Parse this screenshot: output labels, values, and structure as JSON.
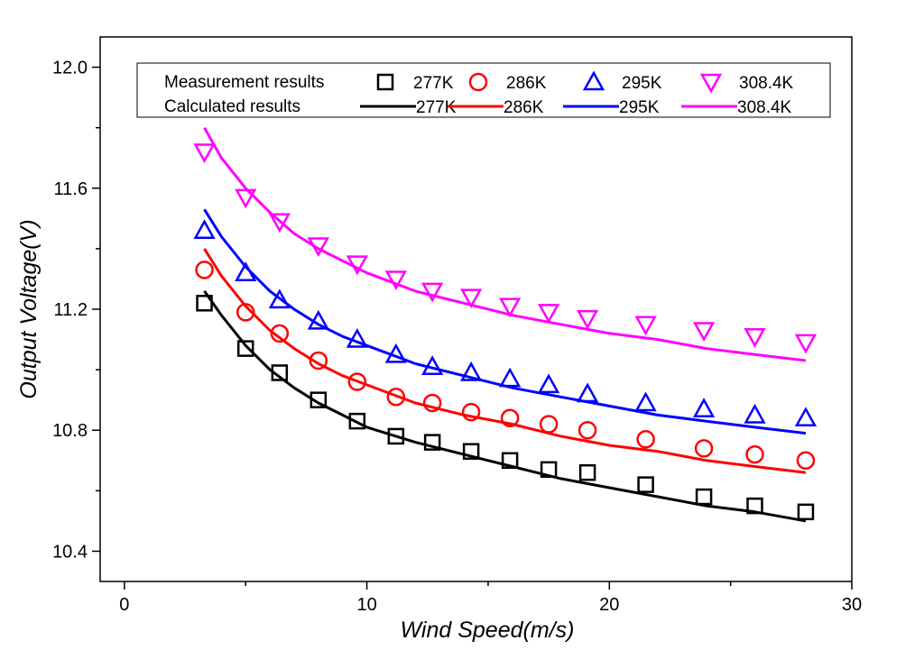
{
  "chart_data": {
    "type": "scatter",
    "title": "",
    "xlabel": "Wind Speed(m/s)",
    "ylabel": "Output Voltage(V)",
    "xlim": [
      -1,
      30
    ],
    "ylim": [
      10.3,
      12.1
    ],
    "x_ticks": [
      0,
      10,
      20,
      30
    ],
    "y_ticks": [
      10.4,
      10.8,
      11.2,
      11.6,
      12.0
    ],
    "x_tick_labels": [
      "0",
      "10",
      "20",
      "30"
    ],
    "y_tick_labels": [
      "10.4",
      "10.8",
      "11.2",
      "11.6",
      "12.0"
    ],
    "grid": false,
    "legend_position": "top",
    "legend": {
      "measured_label": "Measurement results",
      "calculated_label": "Calculated results"
    },
    "measured": [
      {
        "name": "277K",
        "color": "#000000",
        "marker": "square",
        "x": [
          3.3,
          5.0,
          6.4,
          8.0,
          9.6,
          11.2,
          12.7,
          14.3,
          15.9,
          17.5,
          19.1,
          21.5,
          23.9,
          26.0,
          28.1
        ],
        "y": [
          11.22,
          11.07,
          10.99,
          10.9,
          10.83,
          10.78,
          10.76,
          10.73,
          10.7,
          10.67,
          10.66,
          10.62,
          10.58,
          10.55,
          10.53
        ]
      },
      {
        "name": "286K",
        "color": "#ff0000",
        "marker": "circle",
        "x": [
          3.3,
          5.0,
          6.4,
          8.0,
          9.6,
          11.2,
          12.7,
          14.3,
          15.9,
          17.5,
          19.1,
          21.5,
          23.9,
          26.0,
          28.1
        ],
        "y": [
          11.33,
          11.19,
          11.12,
          11.03,
          10.96,
          10.91,
          10.89,
          10.86,
          10.84,
          10.82,
          10.8,
          10.77,
          10.74,
          10.72,
          10.7
        ]
      },
      {
        "name": "295K",
        "color": "#0000ff",
        "marker": "triangle-up",
        "x": [
          3.3,
          5.0,
          6.4,
          8.0,
          9.6,
          11.2,
          12.7,
          14.3,
          15.9,
          17.5,
          19.1,
          21.5,
          23.9,
          26.0,
          28.1
        ],
        "y": [
          11.46,
          11.32,
          11.23,
          11.16,
          11.1,
          11.05,
          11.01,
          10.99,
          10.97,
          10.95,
          10.92,
          10.89,
          10.87,
          10.85,
          10.84
        ]
      },
      {
        "name": "308.4K",
        "color": "#ff00ff",
        "marker": "triangle-down",
        "x": [
          3.3,
          5.0,
          6.4,
          8.0,
          9.6,
          11.2,
          12.7,
          14.3,
          15.9,
          17.5,
          19.1,
          21.5,
          23.9,
          26.0,
          28.1
        ],
        "y": [
          11.72,
          11.57,
          11.49,
          11.41,
          11.35,
          11.3,
          11.26,
          11.24,
          11.21,
          11.19,
          11.17,
          11.15,
          11.13,
          11.11,
          11.09
        ]
      }
    ],
    "calculated": [
      {
        "name": "277K",
        "color": "#000000",
        "x": [
          3.3,
          4.0,
          5.0,
          6.0,
          7.0,
          8.0,
          9.0,
          10.0,
          12.0,
          14.0,
          16.0,
          18.0,
          20.0,
          22.0,
          24.0,
          26.0,
          28.1
        ],
        "y": [
          11.26,
          11.18,
          11.08,
          11.0,
          10.94,
          10.89,
          10.85,
          10.81,
          10.76,
          10.72,
          10.68,
          10.64,
          10.61,
          10.58,
          10.55,
          10.53,
          10.5
        ]
      },
      {
        "name": "286K",
        "color": "#ff0000",
        "x": [
          3.3,
          4.0,
          5.0,
          6.0,
          7.0,
          8.0,
          9.0,
          10.0,
          12.0,
          14.0,
          16.0,
          18.0,
          20.0,
          22.0,
          24.0,
          26.0,
          28.1
        ],
        "y": [
          11.4,
          11.31,
          11.21,
          11.13,
          11.07,
          11.02,
          10.98,
          10.95,
          10.89,
          10.85,
          10.82,
          10.78,
          10.75,
          10.73,
          10.7,
          10.68,
          10.66
        ]
      },
      {
        "name": "295K",
        "color": "#0000ff",
        "x": [
          3.3,
          4.0,
          5.0,
          6.0,
          7.0,
          8.0,
          9.0,
          10.0,
          12.0,
          14.0,
          16.0,
          18.0,
          20.0,
          22.0,
          24.0,
          26.0,
          28.1
        ],
        "y": [
          11.53,
          11.44,
          11.34,
          11.26,
          11.2,
          11.15,
          11.11,
          11.08,
          11.02,
          10.98,
          10.94,
          10.91,
          10.88,
          10.85,
          10.83,
          10.81,
          10.79
        ]
      },
      {
        "name": "308.4K",
        "color": "#ff00ff",
        "x": [
          3.3,
          4.0,
          5.0,
          6.0,
          7.0,
          8.0,
          9.0,
          10.0,
          12.0,
          14.0,
          16.0,
          18.0,
          20.0,
          22.0,
          24.0,
          26.0,
          28.1
        ],
        "y": [
          11.8,
          11.7,
          11.6,
          11.52,
          11.45,
          11.4,
          11.36,
          11.32,
          11.26,
          11.22,
          11.18,
          11.15,
          11.12,
          11.1,
          11.07,
          11.05,
          11.03
        ]
      }
    ]
  }
}
